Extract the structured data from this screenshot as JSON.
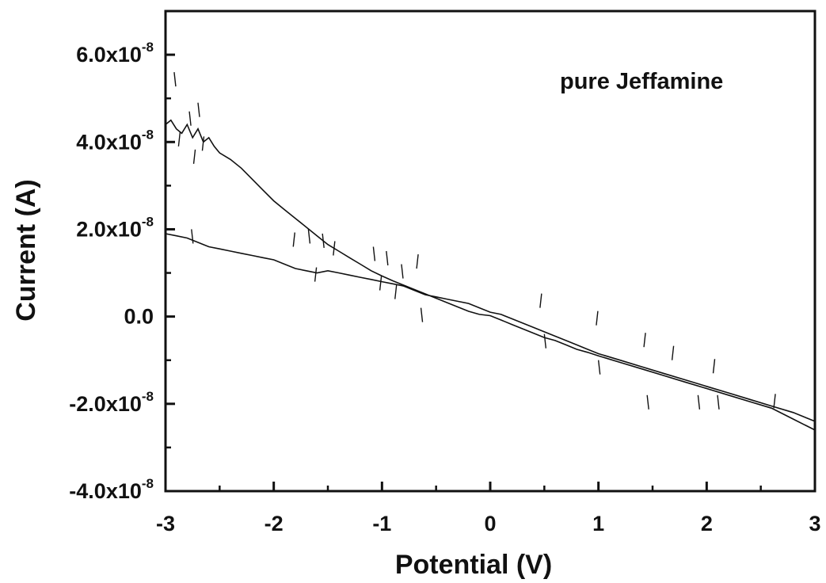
{
  "chart_data": {
    "type": "line",
    "title": "",
    "xlabel": "Potential (V)",
    "ylabel": "Current (A)",
    "xlim": [
      -3,
      3
    ],
    "ylim": [
      -4e-08,
      7e-08
    ],
    "x_ticks": [
      -3,
      -2,
      -1,
      0,
      1,
      2,
      3
    ],
    "x_tick_labels": [
      "-3",
      "-2",
      "-1",
      "0",
      "1",
      "2",
      "3"
    ],
    "y_ticks": [
      {
        "value": -4e-08,
        "mantissa": "-4.0x10",
        "exponent": "-8"
      },
      {
        "value": -2e-08,
        "mantissa": "-2.0x10",
        "exponent": "-8"
      },
      {
        "value": 0,
        "mantissa": "0.0",
        "exponent": ""
      },
      {
        "value": 2e-08,
        "mantissa": "2.0x10",
        "exponent": "-8"
      },
      {
        "value": 4e-08,
        "mantissa": "4.0x10",
        "exponent": "-8"
      },
      {
        "value": 6e-08,
        "mantissa": "6.0x10",
        "exponent": "-8"
      }
    ],
    "grid": false,
    "annotation": "pure Jeffamine",
    "line_color": "#111111",
    "series": [
      {
        "x": [
          -3.0,
          -2.95,
          -2.9,
          -2.85,
          -2.8,
          -2.75,
          -2.7,
          -2.65,
          -2.6,
          -2.55,
          -2.5,
          -2.4,
          -2.3,
          -2.2,
          -2.1,
          -2.0,
          -1.9,
          -1.8,
          -1.7,
          -1.6,
          -1.5,
          -1.4,
          -1.3,
          -1.2,
          -1.1,
          -1.0,
          -0.9,
          -0.8,
          -0.7,
          -0.6,
          -0.5,
          -0.4,
          -0.3,
          -0.2,
          -0.1,
          0.0,
          0.1,
          0.2,
          0.3,
          0.4,
          0.5,
          0.6,
          0.7,
          0.8,
          0.9,
          1.0,
          1.2,
          1.4,
          1.6,
          1.8,
          2.0,
          2.2,
          2.4,
          2.6,
          2.8,
          3.0
        ],
        "y": [
          4.4e-08,
          4.5e-08,
          4.3e-08,
          4.2e-08,
          4.4e-08,
          4.1e-08,
          4.3e-08,
          4e-08,
          4.1e-08,
          3.9e-08,
          3.75e-08,
          3.6e-08,
          3.4e-08,
          3.15e-08,
          2.9e-08,
          2.65e-08,
          2.45e-08,
          2.25e-08,
          2.05e-08,
          1.85e-08,
          1.65e-08,
          1.5e-08,
          1.35e-08,
          1.2e-08,
          1.05e-08,
          9.3e-09,
          8.2e-09,
          7.2e-09,
          6.2e-09,
          5.2e-09,
          4.2e-09,
          3.2e-09,
          2.2e-09,
          1.2e-09,
          5e-10,
          2e-10,
          -8e-10,
          -1.8e-09,
          -2.8e-09,
          -3.8e-09,
          -4.8e-09,
          -5.5e-09,
          -6.5e-09,
          -7.5e-09,
          -8.2e-09,
          -9e-09,
          -1.05e-08,
          -1.2e-08,
          -1.35e-08,
          -1.5e-08,
          -1.65e-08,
          -1.8e-08,
          -1.95e-08,
          -2.1e-08,
          -2.35e-08,
          -2.6e-08
        ]
      },
      {
        "x": [
          -3.0,
          -2.9,
          -2.8,
          -2.7,
          -2.6,
          -2.5,
          -2.4,
          -2.3,
          -2.2,
          -2.1,
          -2.0,
          -1.9,
          -1.8,
          -1.7,
          -1.6,
          -1.5,
          -1.4,
          -1.3,
          -1.2,
          -1.1,
          -1.0,
          -0.9,
          -0.8,
          -0.7,
          -0.6,
          -0.5,
          -0.4,
          -0.3,
          -0.2,
          -0.1,
          0.0,
          0.1,
          0.2,
          0.3,
          0.4,
          0.5,
          0.6,
          0.7,
          0.8,
          0.9,
          1.0,
          1.2,
          1.4,
          1.6,
          1.8,
          2.0,
          2.2,
          2.4,
          2.6,
          2.8,
          3.0
        ],
        "y": [
          1.9e-08,
          1.85e-08,
          1.8e-08,
          1.7e-08,
          1.6e-08,
          1.55e-08,
          1.5e-08,
          1.45e-08,
          1.4e-08,
          1.35e-08,
          1.3e-08,
          1.2e-08,
          1.1e-08,
          1.05e-08,
          1e-08,
          1.05e-08,
          1e-08,
          9.5e-09,
          9e-09,
          8.5e-09,
          8e-09,
          7.5e-09,
          7e-09,
          6e-09,
          5e-09,
          4.5e-09,
          4e-09,
          3.5e-09,
          3e-09,
          2e-09,
          1e-09,
          5e-10,
          -5e-10,
          -1.5e-09,
          -2.5e-09,
          -3.5e-09,
          -4.5e-09,
          -5.5e-09,
          -6.5e-09,
          -7.5e-09,
          -8.5e-09,
          -1e-08,
          -1.15e-08,
          -1.3e-08,
          -1.45e-08,
          -1.6e-08,
          -1.75e-08,
          -1.9e-08,
          -2.05e-08,
          -2.2e-08,
          -2.4e-08
        ]
      }
    ],
    "noise_spikes": [
      {
        "x": -2.92,
        "y": 5.6e-08
      },
      {
        "x": -2.88,
        "y": 3.9e-08
      },
      {
        "x": -2.78,
        "y": 4.7e-08
      },
      {
        "x": -2.74,
        "y": 3.5e-08
      },
      {
        "x": -2.7,
        "y": 4.9e-08
      },
      {
        "x": -2.66,
        "y": 3.8e-08
      },
      {
        "x": -2.76,
        "y": 2e-08
      },
      {
        "x": -1.82,
        "y": 1.6e-08
      },
      {
        "x": -1.68,
        "y": 2e-08
      },
      {
        "x": -1.62,
        "y": 8e-09
      },
      {
        "x": -1.55,
        "y": 1.9e-08
      },
      {
        "x": -1.45,
        "y": 1.4e-08
      },
      {
        "x": -1.08,
        "y": 1.6e-08
      },
      {
        "x": -1.02,
        "y": 6e-09
      },
      {
        "x": -0.96,
        "y": 1.5e-08
      },
      {
        "x": -0.88,
        "y": 4e-09
      },
      {
        "x": -0.82,
        "y": 1.2e-08
      },
      {
        "x": -0.68,
        "y": 1.1e-08
      },
      {
        "x": -0.64,
        "y": 2e-09
      },
      {
        "x": 0.46,
        "y": 2e-09
      },
      {
        "x": 0.5,
        "y": -4e-09
      },
      {
        "x": 0.98,
        "y": -2e-09
      },
      {
        "x": 1.0,
        "y": -1e-08
      },
      {
        "x": 1.42,
        "y": -7e-09
      },
      {
        "x": 1.45,
        "y": -1.8e-08
      },
      {
        "x": 1.68,
        "y": -1e-08
      },
      {
        "x": 1.92,
        "y": -1.8e-08
      },
      {
        "x": 2.06,
        "y": -1.3e-08
      },
      {
        "x": 2.1,
        "y": -1.8e-08
      },
      {
        "x": 2.62,
        "y": -2.1e-08
      }
    ]
  }
}
